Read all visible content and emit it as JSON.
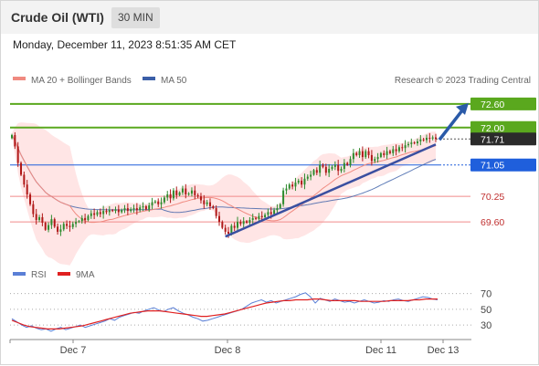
{
  "header": {
    "title": "Crude Oil (WTI)",
    "timeframe": "30 MIN",
    "datetime": "Monday, December 11, 2023 8:51:35 AM CET"
  },
  "legend": {
    "ma20_label": "MA 20 + Bollinger Bands",
    "ma50_label": "MA 50",
    "credit": "Research © 2023 Trading Central",
    "rsi_label": "RSI",
    "rsi_ma_label": "9MA"
  },
  "colors": {
    "ma20": "#f08a80",
    "bollinger_band": "#ffdcdc",
    "ma50": "#3b5fa8",
    "bull_candle": "#2e8b2e",
    "bear_candle": "#b01818",
    "resistance": "#5aa81e",
    "support": "#f08a8a",
    "pivot": "#1f5fdc",
    "current_price": "#2b2b2b",
    "trendline": "#3a4fa0",
    "arrow": "#2a5aa8",
    "rsi": "#5a7fd6",
    "rsi_ma": "#e02020"
  },
  "chart_data": {
    "type": "candlestick",
    "instrument": "Crude Oil (WTI)",
    "timeframe": "30 MIN",
    "x_labels": [
      "Dec 7",
      "Dec 8",
      "Dec 11",
      "Dec 13"
    ],
    "ylim": [
      69.0,
      72.9
    ],
    "levels": [
      {
        "value": 72.6,
        "label": "72.60",
        "kind": "resistance"
      },
      {
        "value": 72.0,
        "label": "72.00",
        "kind": "resistance"
      },
      {
        "value": 71.71,
        "label": "71.71",
        "kind": "current"
      },
      {
        "value": 71.05,
        "label": "71.05",
        "kind": "pivot"
      },
      {
        "value": 70.25,
        "label": "70.25",
        "kind": "support"
      },
      {
        "value": 69.6,
        "label": "69.60",
        "kind": "support"
      }
    ],
    "close": [
      71.81,
      71.52,
      71.1,
      70.8,
      70.55,
      70.3,
      70.05,
      69.8,
      69.65,
      69.72,
      69.58,
      69.4,
      69.52,
      69.67,
      69.48,
      69.35,
      69.41,
      69.55,
      69.5,
      69.47,
      69.55,
      69.6,
      69.62,
      69.7,
      69.65,
      69.75,
      69.82,
      69.78,
      69.85,
      69.8,
      69.88,
      69.85,
      69.9,
      69.88,
      69.92,
      69.85,
      69.9,
      69.95,
      69.88,
      69.92,
      69.95,
      69.9,
      69.97,
      70.0,
      69.92,
      70.02,
      70.1,
      70.12,
      70.05,
      70.1,
      70.22,
      70.3,
      70.2,
      70.4,
      70.28,
      70.35,
      70.45,
      70.3,
      70.32,
      70.4,
      70.28,
      70.25,
      70.15,
      70.05,
      70.1,
      70.0,
      69.95,
      69.75,
      69.6,
      69.45,
      69.35,
      69.3,
      69.5,
      69.45,
      69.6,
      69.55,
      69.62,
      69.58,
      69.65,
      69.7,
      69.68,
      69.75,
      69.72,
      69.78,
      69.85,
      69.8,
      69.9,
      69.95,
      70.05,
      70.4,
      70.45,
      70.55,
      70.5,
      70.6,
      70.65,
      70.55,
      70.7,
      70.75,
      70.8,
      70.92,
      70.85,
      71.05,
      71.0,
      70.85,
      70.95,
      71.0,
      71.05,
      70.9,
      70.95,
      71.1,
      71.05,
      71.2,
      71.35,
      71.3,
      71.4,
      71.25,
      71.4,
      71.3,
      71.15,
      71.2,
      71.25,
      71.35,
      71.3,
      71.4,
      71.35,
      71.45,
      71.4,
      71.5,
      71.48,
      71.55,
      71.58,
      71.62,
      71.6,
      71.65,
      71.7,
      71.68,
      71.74,
      71.72,
      71.75,
      71.71
    ],
    "rsi": [
      38,
      34,
      30,
      27,
      29,
      26,
      24,
      25,
      22,
      25,
      27,
      24,
      26,
      28,
      30,
      27,
      29,
      31,
      33,
      35,
      38,
      36,
      40,
      42,
      44,
      46,
      45,
      48,
      50,
      52,
      49,
      47,
      50,
      52,
      48,
      45,
      43,
      40,
      38,
      35,
      36,
      38,
      40,
      42,
      44,
      46,
      48,
      50,
      54,
      58,
      60,
      62,
      59,
      61,
      58,
      60,
      62,
      64,
      66,
      69,
      71,
      66,
      58,
      64,
      62,
      60,
      63,
      61,
      59,
      60,
      58,
      60,
      62,
      60,
      58,
      59,
      61,
      60,
      62,
      63,
      61,
      60,
      62,
      64,
      66,
      65,
      63,
      62
    ],
    "rsi_ma": [
      36,
      33,
      30,
      28,
      27,
      26,
      25,
      25,
      25,
      26,
      27,
      28,
      29,
      31,
      33,
      35,
      37,
      39,
      41,
      43,
      45,
      46,
      47,
      48,
      48,
      48,
      47,
      46,
      45,
      44,
      43,
      42,
      41,
      41,
      42,
      43,
      44,
      46,
      48,
      50,
      52,
      54,
      56,
      58,
      59,
      60,
      61,
      61,
      62,
      62,
      62,
      63,
      63,
      62,
      61,
      61,
      61,
      61,
      61,
      60,
      60,
      60,
      60,
      60,
      61,
      61,
      61,
      61,
      62,
      62,
      63,
      63,
      63
    ],
    "rsi_levels": [
      30,
      50,
      70
    ]
  }
}
